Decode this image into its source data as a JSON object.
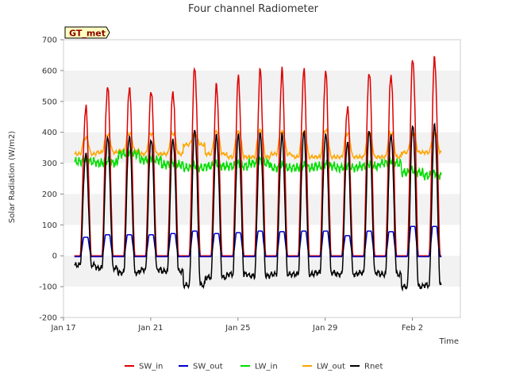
{
  "chart_data": {
    "type": "line",
    "title": "Four channel Radiometer",
    "xlabel": "Time",
    "ylabel": "Solar Radiation (W/m2)",
    "badge": "GT_met",
    "ylim": [
      -200,
      700
    ],
    "yticks": [
      -200,
      -100,
      0,
      100,
      200,
      300,
      400,
      500,
      600,
      700
    ],
    "xlim": [
      0,
      18.2
    ],
    "xticks": [
      {
        "day": 0,
        "label": "Jan 17"
      },
      {
        "day": 4,
        "label": "Jan 21"
      },
      {
        "day": 8,
        "label": "Jan 25"
      },
      {
        "day": 12,
        "label": "Jan 29"
      },
      {
        "day": 16,
        "label": "Feb 2"
      }
    ],
    "grid": "horizontal bands",
    "legend_position": "bottom",
    "series": [
      {
        "name": "SW_in",
        "color": "#dd0000"
      },
      {
        "name": "SW_out",
        "color": "#0000cc"
      },
      {
        "name": "LW_in",
        "color": "#00dd00"
      },
      {
        "name": "LW_out",
        "color": "#ffa500"
      },
      {
        "name": "Rnet",
        "color": "#000000"
      }
    ],
    "days": [
      {
        "day": 17,
        "sw_in": 480,
        "sw_out": 60,
        "lw_in": 305,
        "lw_out": 380,
        "rnet": 330,
        "lw_out_night": 330,
        "rnet_night": -30
      },
      {
        "day": 18,
        "sw_in": 550,
        "sw_out": 68,
        "lw_in": 300,
        "lw_out": 390,
        "rnet": 385,
        "lw_out_night": 335,
        "rnet_night": -40
      },
      {
        "day": 19,
        "sw_in": 550,
        "sw_out": 68,
        "lw_in": 330,
        "lw_out": 395,
        "rnet": 390,
        "lw_out_night": 340,
        "rnet_night": -55
      },
      {
        "day": 20,
        "sw_in": 540,
        "sw_out": 68,
        "lw_in": 310,
        "lw_out": 395,
        "rnet": 380,
        "lw_out_night": 330,
        "rnet_night": -45
      },
      {
        "day": 21,
        "sw_in": 535,
        "sw_out": 72,
        "lw_in": 295,
        "lw_out": 395,
        "rnet": 380,
        "lw_out_night": 330,
        "rnet_night": -50
      },
      {
        "day": 22,
        "sw_in": 610,
        "sw_out": 80,
        "lw_in": 285,
        "lw_out": 390,
        "rnet": 410,
        "lw_out_night": 360,
        "rnet_night": -95
      },
      {
        "day": 23,
        "sw_in": 550,
        "sw_out": 72,
        "lw_in": 290,
        "lw_out": 400,
        "rnet": 390,
        "lw_out_night": 330,
        "rnet_night": -70
      },
      {
        "day": 24,
        "sw_in": 575,
        "sw_out": 75,
        "lw_in": 290,
        "lw_out": 400,
        "rnet": 390,
        "lw_out_night": 320,
        "rnet_night": -60
      },
      {
        "day": 25,
        "sw_in": 598,
        "sw_out": 80,
        "lw_in": 300,
        "lw_out": 405,
        "rnet": 395,
        "lw_out_night": 320,
        "rnet_night": -65
      },
      {
        "day": 26,
        "sw_in": 595,
        "sw_out": 78,
        "lw_in": 285,
        "lw_out": 400,
        "rnet": 390,
        "lw_out_night": 330,
        "rnet_night": -60
      },
      {
        "day": 27,
        "sw_in": 600,
        "sw_out": 80,
        "lw_in": 285,
        "lw_out": 400,
        "rnet": 400,
        "lw_out_night": 320,
        "rnet_night": -60
      },
      {
        "day": 28,
        "sw_in": 598,
        "sw_out": 80,
        "lw_in": 290,
        "lw_out": 405,
        "rnet": 395,
        "lw_out_night": 320,
        "rnet_night": -55
      },
      {
        "day": 29,
        "sw_in": 485,
        "sw_out": 65,
        "lw_in": 285,
        "lw_out": 395,
        "rnet": 370,
        "lw_out_night": 320,
        "rnet_night": -60
      },
      {
        "day": 30,
        "sw_in": 600,
        "sw_out": 80,
        "lw_in": 290,
        "lw_out": 395,
        "rnet": 410,
        "lw_out_night": 320,
        "rnet_night": -55
      },
      {
        "day": 31,
        "sw_in": 590,
        "sw_out": 78,
        "lw_in": 300,
        "lw_out": 395,
        "rnet": 395,
        "lw_out_night": 320,
        "rnet_night": -60
      },
      {
        "day": 32,
        "sw_in": 640,
        "sw_out": 95,
        "lw_in": 270,
        "lw_out": 395,
        "rnet": 425,
        "lw_out_night": 335,
        "rnet_night": -100
      },
      {
        "day": 33,
        "sw_in": 640,
        "sw_out": 95,
        "lw_in": 260,
        "lw_out": 395,
        "rnet": 425,
        "lw_out_night": 335,
        "rnet_night": -95
      }
    ]
  }
}
